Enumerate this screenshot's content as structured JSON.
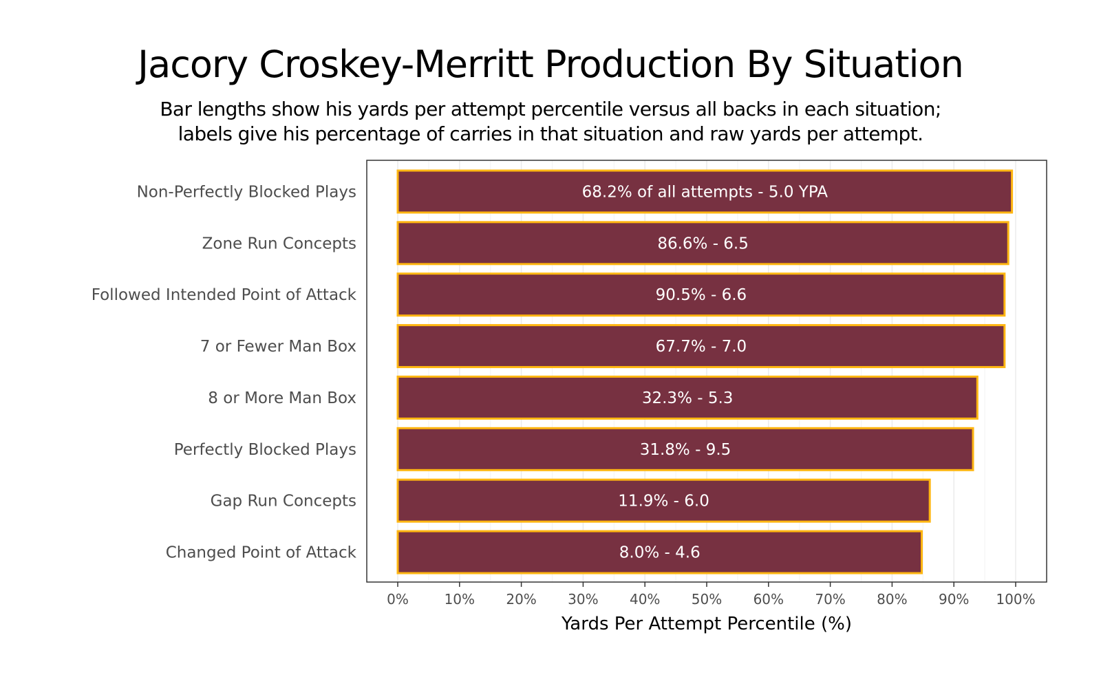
{
  "chart_data": {
    "type": "bar",
    "orientation": "horizontal",
    "title": "Jacory Croskey-Merritt Production By Situation",
    "subtitle": [
      "Bar lengths show his yards per attempt percentile versus all backs in each situation;",
      "labels give his percentage of carries in that situation and raw yards per attempt."
    ],
    "xlabel": "Yards Per Attempt Percentile (%)",
    "ylabel": "",
    "xlim": [
      0,
      100
    ],
    "x_ticks": [
      0,
      10,
      20,
      30,
      40,
      50,
      60,
      70,
      80,
      90,
      100
    ],
    "x_tick_labels": [
      "0%",
      "10%",
      "20%",
      "30%",
      "40%",
      "50%",
      "60%",
      "70%",
      "80%",
      "90%",
      "100%"
    ],
    "grid": true,
    "legend": "none",
    "categories": [
      "Non-Perfectly Blocked Plays",
      "Zone Run Concepts",
      "Followed Intended Point of Attack",
      "7 or Fewer Man Box",
      "8 or More Man Box",
      "Perfectly Blocked Plays",
      "Gap Run Concepts",
      "Changed Point of Attack"
    ],
    "values": [
      99.4,
      98.8,
      98.2,
      98.2,
      93.8,
      93.1,
      86.1,
      84.8
    ],
    "bar_labels": [
      "68.2% of all attempts - 5.0 YPA",
      "86.6% - 6.5",
      "90.5% - 6.6",
      "67.7% - 7.0",
      "32.3% - 5.3",
      "31.8% - 9.5",
      "11.9% - 6.0",
      "8.0% - 4.6"
    ],
    "pct_of_attempts": [
      68.2,
      86.6,
      90.5,
      67.7,
      32.3,
      31.8,
      11.9,
      8.0
    ],
    "ypa": [
      5.0,
      6.5,
      6.6,
      7.0,
      5.3,
      9.5,
      6.0,
      4.6
    ],
    "colors": {
      "bar_fill": "#773141",
      "bar_border": "#FFB612",
      "grid": "#ebebeb",
      "panel_border": "#333333"
    }
  }
}
